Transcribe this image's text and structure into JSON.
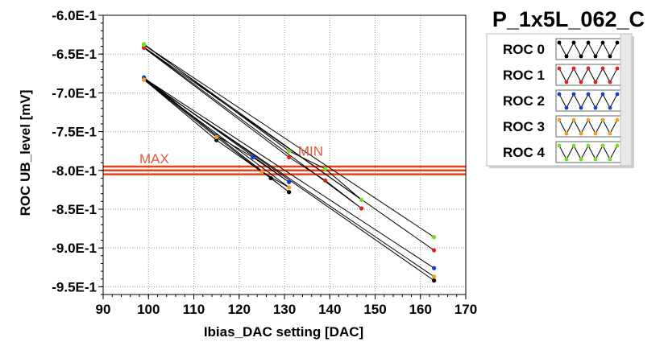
{
  "chart_data": {
    "type": "line",
    "title": "P_1x5L_062_C",
    "xlabel": "Ibias_DAC setting [DAC]",
    "ylabel": "ROC UB_level [mV]",
    "xlim": [
      90,
      170
    ],
    "ylim": [
      -0.96,
      -0.6
    ],
    "x_ticks": [
      90,
      100,
      110,
      120,
      130,
      140,
      150,
      160,
      170
    ],
    "x_tick_labels": [
      "90",
      "100",
      "110",
      "120",
      "130",
      "140",
      "150",
      "160",
      "170"
    ],
    "y_ticks": [
      -0.6,
      -0.65,
      -0.7,
      -0.75,
      -0.8,
      -0.85,
      -0.9,
      -0.95
    ],
    "y_tick_labels": [
      "-6.0E-1",
      "-6.5E-1",
      "-7.0E-1",
      "-7.5E-1",
      "-8.0E-1",
      "-8.5E-1",
      "-9.0E-1",
      "-9.5E-1"
    ],
    "grid": true,
    "legend_position": "top-right",
    "series": [
      {
        "name": "ROC 0",
        "color": "#000000",
        "points": [
          [
            99,
            -0.683
          ],
          [
            115,
            -0.761
          ],
          [
            127,
            -0.81
          ],
          [
            131,
            -0.828
          ],
          [
            99,
            -0.682
          ],
          [
            163,
            -0.942
          ]
        ]
      },
      {
        "name": "ROC 1",
        "color": "#e0201a",
        "points": [
          [
            99,
            -0.642
          ],
          [
            131,
            -0.783
          ],
          [
            139,
            -0.813
          ],
          [
            147,
            -0.849
          ],
          [
            99,
            -0.641
          ],
          [
            163,
            -0.903
          ]
        ]
      },
      {
        "name": "ROC 2",
        "color": "#1040d0",
        "points": [
          [
            99,
            -0.68
          ],
          [
            115,
            -0.755
          ],
          [
            123,
            -0.783
          ],
          [
            131,
            -0.815
          ],
          [
            99,
            -0.681
          ],
          [
            163,
            -0.926
          ]
        ]
      },
      {
        "name": "ROC 3",
        "color": "#f0a020",
        "points": [
          [
            99,
            -0.683
          ],
          [
            115,
            -0.757
          ],
          [
            125,
            -0.802
          ],
          [
            131,
            -0.822
          ],
          [
            99,
            -0.683
          ],
          [
            163,
            -0.937
          ]
        ]
      },
      {
        "name": "ROC 4",
        "color": "#70e020",
        "points": [
          [
            99,
            -0.637
          ],
          [
            131,
            -0.775
          ],
          [
            139,
            -0.798
          ],
          [
            147,
            -0.838
          ],
          [
            99,
            -0.638
          ],
          [
            163,
            -0.886
          ]
        ]
      }
    ],
    "reference_lines": [
      {
        "y": -0.795,
        "color": "#e8401a"
      },
      {
        "y": -0.8,
        "color": "#e8401a"
      },
      {
        "y": -0.805,
        "color": "#e8401a"
      }
    ],
    "annotations": [
      {
        "text": "MAX",
        "x": 98,
        "y": -0.791,
        "color": "#e05a3a"
      },
      {
        "text": "MIN",
        "x": 133,
        "y": -0.781,
        "color": "#e05a3a"
      }
    ]
  }
}
